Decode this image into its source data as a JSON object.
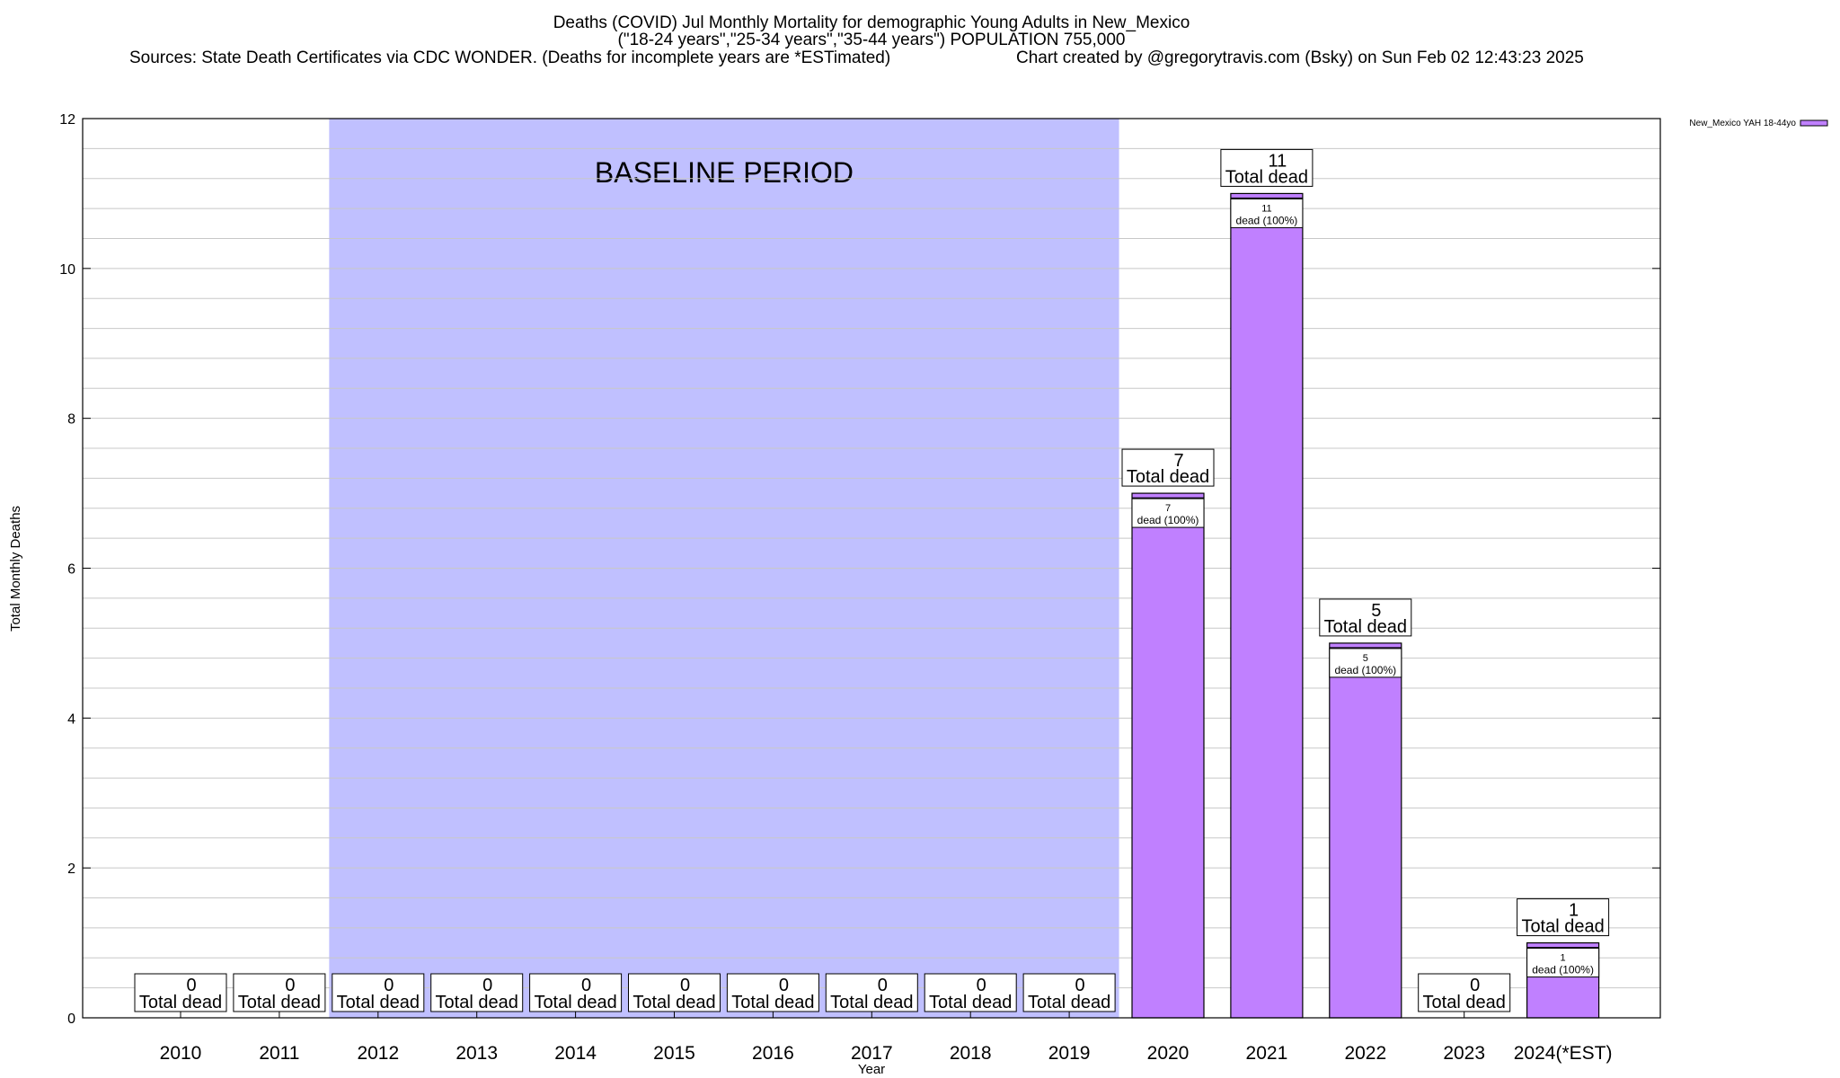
{
  "header": {
    "title_line1": "Deaths (COVID) Jul Monthly Mortality for demographic Young Adults in New_Mexico",
    "title_line2": "(\"18-24 years\",\"25-34 years\",\"35-44 years\") POPULATION 755,000",
    "sources": "Sources: State Death Certificates via CDC WONDER. (Deaths for incomplete years are *ESTimated)",
    "credit": "Chart created by @gregorytravis.com (Bsky) on Sun Feb 02 12:43:23 2025"
  },
  "colors": {
    "bar": "#c080ff",
    "baseline": "#c0c0ff",
    "grid": "#c8c8c8"
  },
  "chart_data": {
    "type": "bar",
    "xlabel": "Year",
    "ylabel": "Total Monthly Deaths",
    "ylim": [
      0,
      12
    ],
    "yticks": [
      0,
      2,
      4,
      6,
      8,
      10,
      12
    ],
    "grid": true,
    "legend_position": "top-right",
    "categories": [
      "2010",
      "2011",
      "2012",
      "2013",
      "2014",
      "2015",
      "2016",
      "2017",
      "2018",
      "2019",
      "2020",
      "2021",
      "2022",
      "2023",
      "2024(*EST)"
    ],
    "series": [
      {
        "name": "New_Mexico YAH 18-44yo",
        "values": [
          0,
          0,
          0,
          0,
          0,
          0,
          0,
          0,
          0,
          0,
          7,
          11,
          5,
          0,
          1
        ]
      }
    ],
    "baseline_period": {
      "label": "BASELINE PERIOD",
      "x_start": "2012",
      "x_end": "2019"
    },
    "total_label": "Total dead",
    "inner_label_suffix": "dead (100%)"
  }
}
